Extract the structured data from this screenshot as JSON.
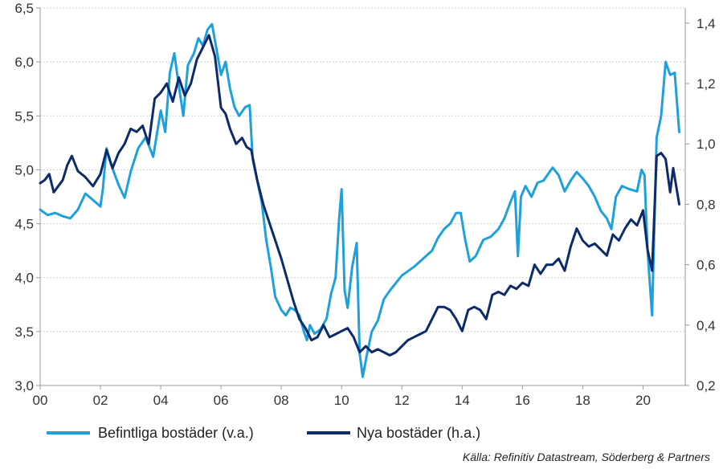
{
  "chart_data": {
    "type": "line",
    "title": "",
    "x_axis": {
      "range": [
        2000,
        2021.4
      ],
      "ticks": [
        2000,
        2002,
        2004,
        2006,
        2008,
        2010,
        2012,
        2014,
        2016,
        2018,
        2020
      ],
      "tick_labels": [
        "00",
        "02",
        "04",
        "06",
        "08",
        "10",
        "12",
        "14",
        "16",
        "18",
        "20"
      ]
    },
    "y_left": {
      "range": [
        3.0,
        6.5
      ],
      "ticks": [
        3.0,
        3.5,
        4.0,
        4.5,
        5.0,
        5.5,
        6.0,
        6.5
      ],
      "tick_labels": [
        "3,0",
        "3,5",
        "4,0",
        "4,5",
        "5,0",
        "5,5",
        "6,0",
        "6,5"
      ]
    },
    "y_right": {
      "range": [
        0.2,
        1.45
      ],
      "ticks": [
        0.2,
        0.4,
        0.6,
        0.8,
        1.0,
        1.2,
        1.4
      ],
      "tick_labels": [
        "0,2",
        "0,4",
        "0,6",
        "0,8",
        "1,0",
        "1,2",
        "1,4"
      ]
    },
    "grid": "horizontal",
    "legend_position": "bottom",
    "series": [
      {
        "name": "Befintliga bostäder (v.a.)",
        "axis": "left",
        "color": "#1ea0dc",
        "points": [
          [
            2000.0,
            4.63
          ],
          [
            2000.25,
            4.58
          ],
          [
            2000.5,
            4.6
          ],
          [
            2000.75,
            4.57
          ],
          [
            2001.0,
            4.55
          ],
          [
            2001.25,
            4.63
          ],
          [
            2001.5,
            4.78
          ],
          [
            2001.75,
            4.72
          ],
          [
            2002.0,
            4.66
          ],
          [
            2002.08,
            4.82
          ],
          [
            2002.2,
            5.2
          ],
          [
            2002.35,
            5.05
          ],
          [
            2002.6,
            4.86
          ],
          [
            2002.8,
            4.74
          ],
          [
            2003.0,
            4.98
          ],
          [
            2003.25,
            5.2
          ],
          [
            2003.5,
            5.3
          ],
          [
            2003.75,
            5.12
          ],
          [
            2004.0,
            5.55
          ],
          [
            2004.15,
            5.35
          ],
          [
            2004.3,
            5.9
          ],
          [
            2004.45,
            6.08
          ],
          [
            2004.6,
            5.78
          ],
          [
            2004.75,
            5.5
          ],
          [
            2004.9,
            5.97
          ],
          [
            2005.1,
            6.08
          ],
          [
            2005.25,
            6.22
          ],
          [
            2005.4,
            6.15
          ],
          [
            2005.55,
            6.3
          ],
          [
            2005.7,
            6.35
          ],
          [
            2005.85,
            6.12
          ],
          [
            2006.0,
            5.88
          ],
          [
            2006.15,
            6.0
          ],
          [
            2006.3,
            5.75
          ],
          [
            2006.45,
            5.58
          ],
          [
            2006.6,
            5.5
          ],
          [
            2006.8,
            5.58
          ],
          [
            2006.95,
            5.6
          ],
          [
            2007.05,
            5.1
          ],
          [
            2007.2,
            4.9
          ],
          [
            2007.35,
            4.7
          ],
          [
            2007.5,
            4.35
          ],
          [
            2007.65,
            4.1
          ],
          [
            2007.8,
            3.82
          ],
          [
            2008.0,
            3.7
          ],
          [
            2008.15,
            3.65
          ],
          [
            2008.3,
            3.72
          ],
          [
            2008.45,
            3.7
          ],
          [
            2008.6,
            3.65
          ],
          [
            2008.75,
            3.5
          ],
          [
            2008.85,
            3.42
          ],
          [
            2008.95,
            3.56
          ],
          [
            2009.1,
            3.48
          ],
          [
            2009.3,
            3.52
          ],
          [
            2009.5,
            3.62
          ],
          [
            2009.65,
            3.85
          ],
          [
            2009.8,
            4.0
          ],
          [
            2009.92,
            4.55
          ],
          [
            2010.0,
            4.82
          ],
          [
            2010.1,
            3.88
          ],
          [
            2010.2,
            3.72
          ],
          [
            2010.35,
            4.1
          ],
          [
            2010.5,
            4.32
          ],
          [
            2010.6,
            3.3
          ],
          [
            2010.7,
            3.08
          ],
          [
            2010.85,
            3.3
          ],
          [
            2011.0,
            3.5
          ],
          [
            2011.2,
            3.6
          ],
          [
            2011.4,
            3.8
          ],
          [
            2011.6,
            3.88
          ],
          [
            2011.8,
            3.95
          ],
          [
            2012.0,
            4.02
          ],
          [
            2012.2,
            4.06
          ],
          [
            2012.4,
            4.1
          ],
          [
            2012.6,
            4.15
          ],
          [
            2012.8,
            4.2
          ],
          [
            2013.0,
            4.25
          ],
          [
            2013.2,
            4.37
          ],
          [
            2013.4,
            4.45
          ],
          [
            2013.6,
            4.5
          ],
          [
            2013.8,
            4.6
          ],
          [
            2013.95,
            4.6
          ],
          [
            2014.1,
            4.35
          ],
          [
            2014.25,
            4.15
          ],
          [
            2014.45,
            4.2
          ],
          [
            2014.7,
            4.35
          ],
          [
            2014.95,
            4.38
          ],
          [
            2015.2,
            4.45
          ],
          [
            2015.4,
            4.55
          ],
          [
            2015.6,
            4.7
          ],
          [
            2015.75,
            4.8
          ],
          [
            2015.85,
            4.2
          ],
          [
            2015.95,
            4.75
          ],
          [
            2016.1,
            4.85
          ],
          [
            2016.3,
            4.75
          ],
          [
            2016.5,
            4.88
          ],
          [
            2016.7,
            4.9
          ],
          [
            2016.9,
            4.98
          ],
          [
            2017.0,
            5.02
          ],
          [
            2017.2,
            4.95
          ],
          [
            2017.4,
            4.8
          ],
          [
            2017.6,
            4.9
          ],
          [
            2017.8,
            4.98
          ],
          [
            2018.0,
            4.92
          ],
          [
            2018.2,
            4.85
          ],
          [
            2018.4,
            4.75
          ],
          [
            2018.6,
            4.62
          ],
          [
            2018.8,
            4.55
          ],
          [
            2018.95,
            4.45
          ],
          [
            2019.1,
            4.75
          ],
          [
            2019.3,
            4.85
          ],
          [
            2019.55,
            4.82
          ],
          [
            2019.8,
            4.8
          ],
          [
            2019.95,
            5.0
          ],
          [
            2020.05,
            4.95
          ],
          [
            2020.15,
            4.25
          ],
          [
            2020.3,
            3.65
          ],
          [
            2020.45,
            5.3
          ],
          [
            2020.6,
            5.5
          ],
          [
            2020.75,
            6.0
          ],
          [
            2020.9,
            5.88
          ],
          [
            2021.05,
            5.9
          ],
          [
            2021.2,
            5.35
          ]
        ]
      },
      {
        "name": "Nya bostäder (h.a.)",
        "axis": "right",
        "color": "#0d2a6b",
        "points": [
          [
            2000.0,
            0.87
          ],
          [
            2000.15,
            0.88
          ],
          [
            2000.3,
            0.9
          ],
          [
            2000.45,
            0.84
          ],
          [
            2000.6,
            0.86
          ],
          [
            2000.75,
            0.88
          ],
          [
            2000.9,
            0.93
          ],
          [
            2001.05,
            0.96
          ],
          [
            2001.25,
            0.91
          ],
          [
            2001.5,
            0.89
          ],
          [
            2001.75,
            0.86
          ],
          [
            2002.0,
            0.9
          ],
          [
            2002.2,
            0.98
          ],
          [
            2002.4,
            0.92
          ],
          [
            2002.6,
            0.97
          ],
          [
            2002.8,
            1.0
          ],
          [
            2003.0,
            1.05
          ],
          [
            2003.2,
            1.04
          ],
          [
            2003.4,
            1.06
          ],
          [
            2003.6,
            1.0
          ],
          [
            2003.8,
            1.15
          ],
          [
            2004.0,
            1.17
          ],
          [
            2004.2,
            1.2
          ],
          [
            2004.4,
            1.14
          ],
          [
            2004.6,
            1.22
          ],
          [
            2004.8,
            1.16
          ],
          [
            2005.0,
            1.2
          ],
          [
            2005.2,
            1.28
          ],
          [
            2005.4,
            1.32
          ],
          [
            2005.6,
            1.36
          ],
          [
            2005.8,
            1.29
          ],
          [
            2006.0,
            1.12
          ],
          [
            2006.15,
            1.1
          ],
          [
            2006.3,
            1.05
          ],
          [
            2006.5,
            1.0
          ],
          [
            2006.7,
            1.02
          ],
          [
            2006.85,
            0.99
          ],
          [
            2007.0,
            0.98
          ],
          [
            2007.2,
            0.88
          ],
          [
            2007.4,
            0.8
          ],
          [
            2007.6,
            0.74
          ],
          [
            2007.8,
            0.68
          ],
          [
            2008.0,
            0.62
          ],
          [
            2008.2,
            0.55
          ],
          [
            2008.4,
            0.48
          ],
          [
            2008.6,
            0.42
          ],
          [
            2008.8,
            0.39
          ],
          [
            2009.0,
            0.35
          ],
          [
            2009.2,
            0.36
          ],
          [
            2009.4,
            0.4
          ],
          [
            2009.6,
            0.36
          ],
          [
            2009.8,
            0.37
          ],
          [
            2010.0,
            0.38
          ],
          [
            2010.2,
            0.39
          ],
          [
            2010.4,
            0.36
          ],
          [
            2010.6,
            0.31
          ],
          [
            2010.8,
            0.33
          ],
          [
            2011.0,
            0.31
          ],
          [
            2011.2,
            0.32
          ],
          [
            2011.4,
            0.31
          ],
          [
            2011.6,
            0.3
          ],
          [
            2011.8,
            0.31
          ],
          [
            2012.0,
            0.33
          ],
          [
            2012.2,
            0.35
          ],
          [
            2012.4,
            0.36
          ],
          [
            2012.6,
            0.37
          ],
          [
            2012.8,
            0.38
          ],
          [
            2013.0,
            0.42
          ],
          [
            2013.2,
            0.46
          ],
          [
            2013.4,
            0.46
          ],
          [
            2013.6,
            0.45
          ],
          [
            2013.8,
            0.42
          ],
          [
            2014.0,
            0.38
          ],
          [
            2014.2,
            0.45
          ],
          [
            2014.4,
            0.46
          ],
          [
            2014.6,
            0.45
          ],
          [
            2014.8,
            0.42
          ],
          [
            2015.0,
            0.5
          ],
          [
            2015.2,
            0.51
          ],
          [
            2015.4,
            0.5
          ],
          [
            2015.6,
            0.53
          ],
          [
            2015.8,
            0.52
          ],
          [
            2016.0,
            0.54
          ],
          [
            2016.2,
            0.53
          ],
          [
            2016.4,
            0.6
          ],
          [
            2016.6,
            0.57
          ],
          [
            2016.8,
            0.6
          ],
          [
            2017.0,
            0.6
          ],
          [
            2017.2,
            0.62
          ],
          [
            2017.4,
            0.58
          ],
          [
            2017.6,
            0.66
          ],
          [
            2017.8,
            0.72
          ],
          [
            2018.0,
            0.68
          ],
          [
            2018.2,
            0.66
          ],
          [
            2018.4,
            0.67
          ],
          [
            2018.6,
            0.65
          ],
          [
            2018.8,
            0.63
          ],
          [
            2019.0,
            0.7
          ],
          [
            2019.2,
            0.68
          ],
          [
            2019.4,
            0.72
          ],
          [
            2019.6,
            0.75
          ],
          [
            2019.8,
            0.73
          ],
          [
            2020.0,
            0.78
          ],
          [
            2020.15,
            0.65
          ],
          [
            2020.3,
            0.58
          ],
          [
            2020.45,
            0.96
          ],
          [
            2020.6,
            0.97
          ],
          [
            2020.75,
            0.95
          ],
          [
            2020.9,
            0.84
          ],
          [
            2021.0,
            0.92
          ],
          [
            2021.2,
            0.8
          ]
        ]
      }
    ],
    "source": "Källa: Refinitiv Datastream, Söderberg & Partners"
  },
  "legend": {
    "items": [
      {
        "label": "Befintliga bostäder (v.a.)",
        "color": "#1ea0dc"
      },
      {
        "label": "Nya bostäder (h.a.)",
        "color": "#0d2a6b"
      }
    ]
  }
}
